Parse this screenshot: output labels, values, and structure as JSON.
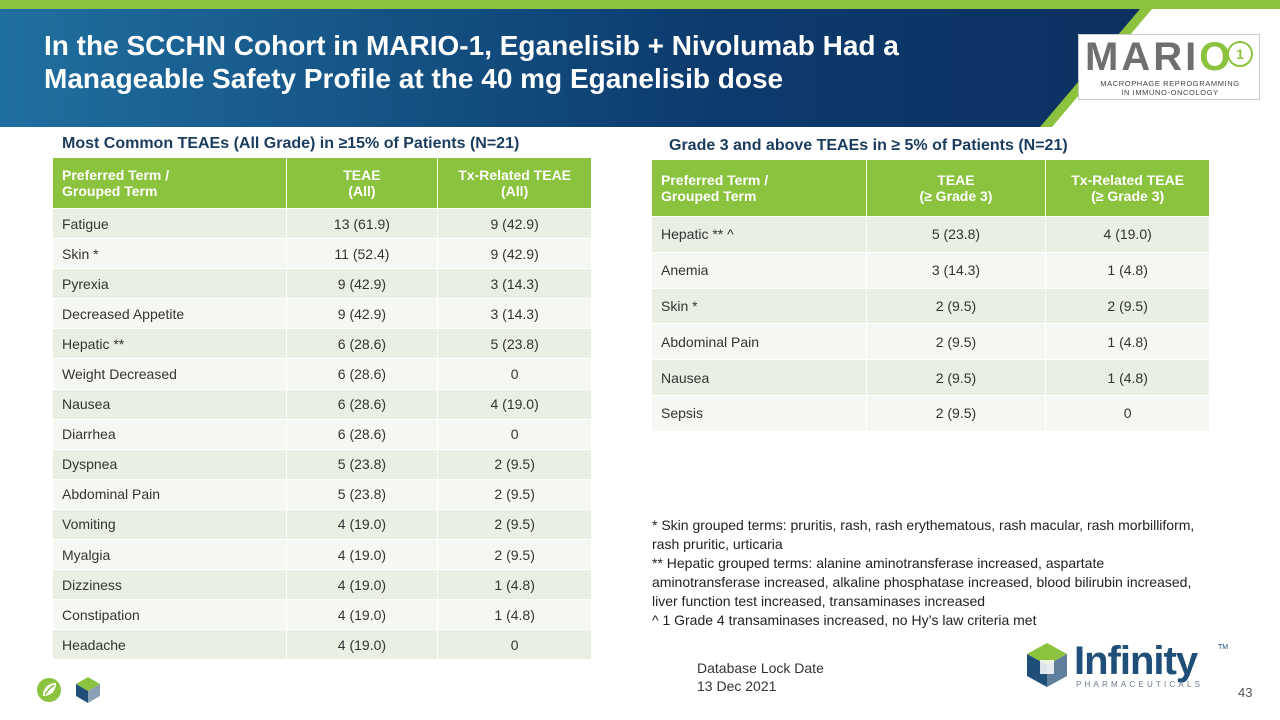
{
  "header": {
    "title_line1": "In the SCCHN Cohort in MARIO-1, Eganelisib + Nivolumab Had a",
    "title_line2": "Manageable Safety Profile at the 40 mg Eganelisib dose"
  },
  "mario_logo": {
    "word_start": "MARI",
    "word_end": "O",
    "badge": "1",
    "tagline_line1": "MACROPHAGE REPROGRAMMING",
    "tagline_line2": "IN IMMUNO-ONCOLOGY"
  },
  "left_table": {
    "title": "Most Common TEAEs (All Grade) in ≥15% of Patients (N=21)",
    "headers": {
      "term_line1": "Preferred Term /",
      "term_line2": "Grouped Term",
      "teae_line1": "TEAE",
      "teae_line2": "(All)",
      "tx_line1": "Tx-Related TEAE",
      "tx_line2": "(All)"
    },
    "rows": [
      {
        "term": "Fatigue",
        "teae": "13 (61.9)",
        "tx": "9 (42.9)"
      },
      {
        "term": "Skin *",
        "teae": "11 (52.4)",
        "tx": "9 (42.9)"
      },
      {
        "term": "Pyrexia",
        "teae": "9 (42.9)",
        "tx": "3 (14.3)"
      },
      {
        "term": "Decreased Appetite",
        "teae": "9 (42.9)",
        "tx": "3 (14.3)"
      },
      {
        "term": "Hepatic **",
        "teae": "6 (28.6)",
        "tx": "5 (23.8)"
      },
      {
        "term": "Weight Decreased",
        "teae": "6 (28.6)",
        "tx": "0"
      },
      {
        "term": "Nausea",
        "teae": "6 (28.6)",
        "tx": "4 (19.0)"
      },
      {
        "term": "Diarrhea",
        "teae": "6 (28.6)",
        "tx": "0"
      },
      {
        "term": "Dyspnea",
        "teae": "5 (23.8)",
        "tx": "2 (9.5)"
      },
      {
        "term": "Abdominal Pain",
        "teae": "5 (23.8)",
        "tx": "2 (9.5)"
      },
      {
        "term": "Vomiting",
        "teae": "4 (19.0)",
        "tx": "2 (9.5)"
      },
      {
        "term": "Myalgia",
        "teae": "4 (19.0)",
        "tx": "2 (9.5)"
      },
      {
        "term": "Dizziness",
        "teae": "4 (19.0)",
        "tx": "1 (4.8)"
      },
      {
        "term": "Constipation",
        "teae": "4 (19.0)",
        "tx": "1 (4.8)"
      },
      {
        "term": "Headache",
        "teae": "4 (19.0)",
        "tx": "0"
      }
    ]
  },
  "right_table": {
    "title": "Grade 3 and above TEAEs in ≥ 5% of Patients (N=21)",
    "headers": {
      "term_line1": "Preferred Term /",
      "term_line2": "Grouped Term",
      "teae_line1": "TEAE",
      "teae_line2": "(≥ Grade 3)",
      "tx_line1": "Tx-Related TEAE",
      "tx_line2": "(≥ Grade 3)"
    },
    "rows": [
      {
        "term": "Hepatic ** ^",
        "teae": "5 (23.8)",
        "tx": "4 (19.0)"
      },
      {
        "term": "Anemia",
        "teae": "3 (14.3)",
        "tx": "1 (4.8)"
      },
      {
        "term": "Skin *",
        "teae": "2 (9.5)",
        "tx": "2 (9.5)"
      },
      {
        "term": "Abdominal Pain",
        "teae": "2 (9.5)",
        "tx": "1 (4.8)"
      },
      {
        "term": "Nausea",
        "teae": "2 (9.5)",
        "tx": "1 (4.8)"
      },
      {
        "term": "Sepsis",
        "teae": "2 (9.5)",
        "tx": "0"
      }
    ]
  },
  "footnotes": {
    "skin": "* Skin grouped terms: pruritis, rash, rash erythematous,  rash macular, rash morbilliform, rash pruritic, urticaria",
    "hepatic": "** Hepatic grouped terms: alanine aminotransferase increased, aspartate aminotransferase increased, alkaline phosphatase increased, blood bilirubin increased, liver function test increased, transaminases increased",
    "caret": "^ 1 Grade 4 transaminases increased, no Hy’s law criteria met"
  },
  "footer": {
    "lock_label": "Database Lock Date",
    "lock_date": "13 Dec 2021",
    "page_number": "43"
  },
  "infinity_logo": {
    "name": "Infinity",
    "tm": "TM",
    "subtitle": "PHARMACEUTICALS"
  },
  "colors": {
    "accent_green": "#8bc33f",
    "header_blue": "#0d3b6e",
    "row_even": "#e9efe3",
    "row_odd": "#f5f8f2"
  },
  "icons": [
    "leaf-circle-icon",
    "cube-icon",
    "infinity-cube-icon"
  ]
}
